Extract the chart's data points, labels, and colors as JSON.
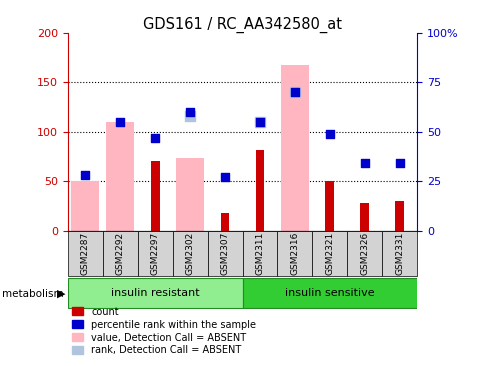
{
  "title": "GDS161 / RC_AA342580_at",
  "samples": [
    "GSM2287",
    "GSM2292",
    "GSM2297",
    "GSM2302",
    "GSM2307",
    "GSM2311",
    "GSM2316",
    "GSM2321",
    "GSM2326",
    "GSM2331"
  ],
  "count_values": [
    0,
    0,
    70,
    0,
    18,
    82,
    0,
    50,
    28,
    30
  ],
  "percentile_rank": [
    28,
    55,
    47,
    60,
    27,
    55,
    70,
    49,
    34,
    34
  ],
  "value_absent": [
    50,
    110,
    0,
    73,
    0,
    0,
    168,
    0,
    0,
    0
  ],
  "rank_absent_pct": [
    0,
    0,
    0,
    58,
    0,
    55,
    70,
    0,
    0,
    0
  ],
  "group1_label": "insulin resistant",
  "group2_label": "insulin sensitive",
  "group1_count": 5,
  "group2_count": 5,
  "metabolism_label": "metabolism",
  "left_ylim": [
    0,
    200
  ],
  "right_ylim": [
    0,
    100
  ],
  "left_yticks": [
    0,
    50,
    100,
    150,
    200
  ],
  "right_yticks": [
    0,
    25,
    50,
    75,
    100
  ],
  "right_yticklabels": [
    "0",
    "25",
    "50",
    "75",
    "100%"
  ],
  "left_tick_color": "#cc0000",
  "right_tick_color": "#0000cc",
  "group1_bg": "#90ee90",
  "group2_bg": "#32cd32",
  "sample_bg": "#d3d3d3",
  "legend_labels": [
    "count",
    "percentile rank within the sample",
    "value, Detection Call = ABSENT",
    "rank, Detection Call = ABSENT"
  ],
  "legend_colors": [
    "#cc0000",
    "#0000cc",
    "#ffb6c1",
    "#b0c4de"
  ]
}
